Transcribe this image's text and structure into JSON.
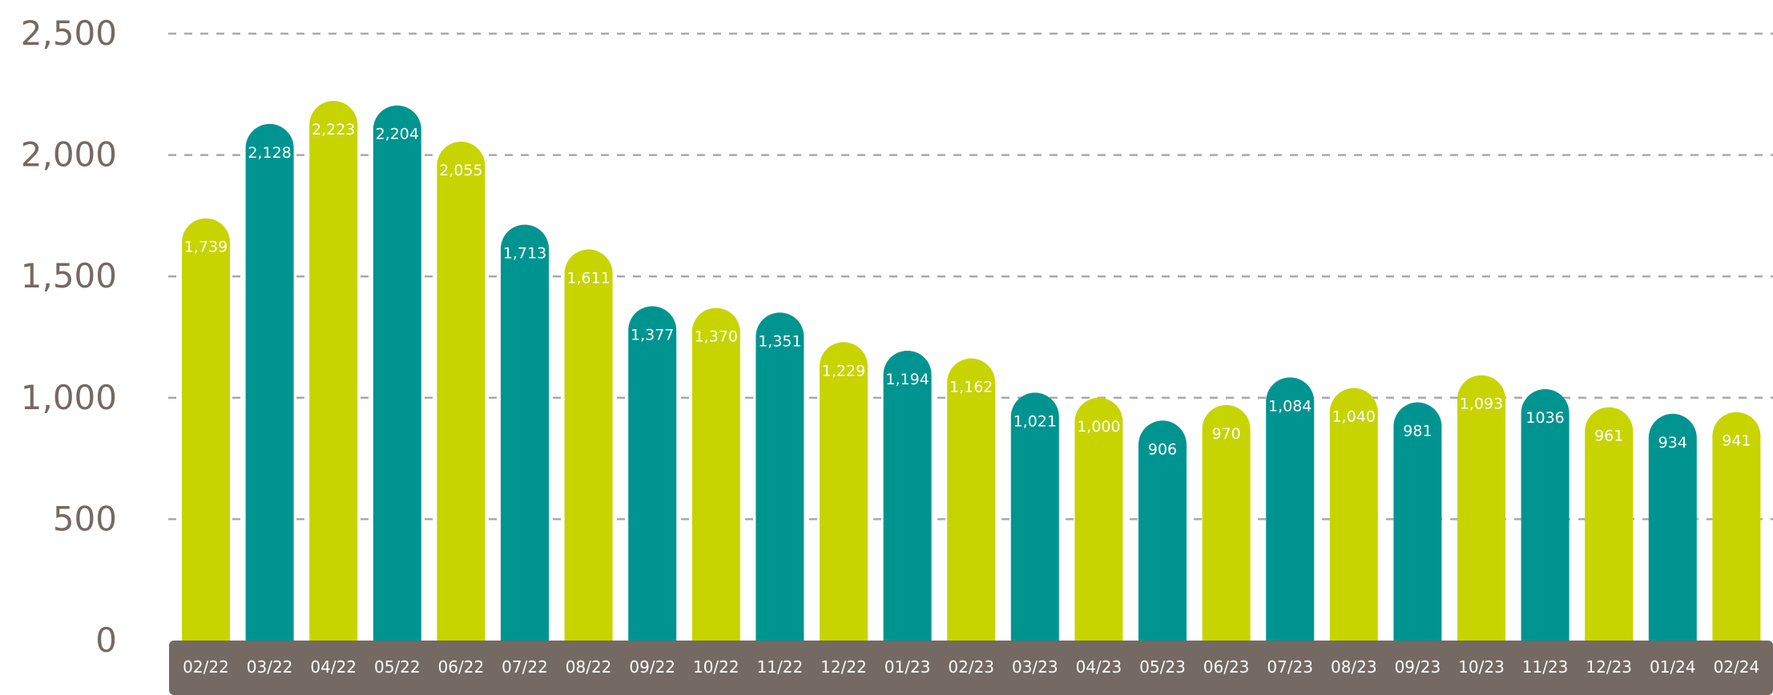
{
  "chart_data": {
    "type": "bar",
    "title": "",
    "xlabel": "",
    "ylabel": "",
    "ylim": [
      0,
      2500
    ],
    "yticks": [
      "0",
      "500",
      "1,000",
      "1,500",
      "2,000",
      "2,500"
    ],
    "grid": true,
    "categories": [
      "02/22",
      "03/22",
      "04/22",
      "05/22",
      "06/22",
      "07/22",
      "08/22",
      "09/22",
      "10/22",
      "11/22",
      "12/22",
      "01/23",
      "02/23",
      "03/23",
      "04/23",
      "05/23",
      "06/23",
      "07/23",
      "08/23",
      "09/23",
      "10/23",
      "11/23",
      "12/23",
      "01/24",
      "02/24"
    ],
    "values": [
      1739,
      2128,
      2223,
      2204,
      2055,
      1713,
      1611,
      1377,
      1370,
      1351,
      1229,
      1194,
      1162,
      1021,
      1000,
      906,
      970,
      1084,
      1040,
      981,
      1093,
      1036,
      961,
      934,
      941
    ],
    "value_labels": [
      "1,739",
      "2,128",
      "2,223",
      "2,204",
      "2,055",
      "1,713",
      "1,611",
      "1,377",
      "1,370",
      "1,351",
      "1,229",
      "1,194",
      "1,162",
      "1,021",
      "1,000",
      "906",
      "970",
      "1,084",
      "1,040",
      "981",
      "1,093",
      "1036",
      "961",
      "934",
      "941"
    ],
    "colors": {
      "bar_odd": "#c8d400",
      "bar_even": "#009491",
      "axis_band": "#746963",
      "tick_text": "#746963",
      "grid": "#a9a9a9"
    }
  }
}
